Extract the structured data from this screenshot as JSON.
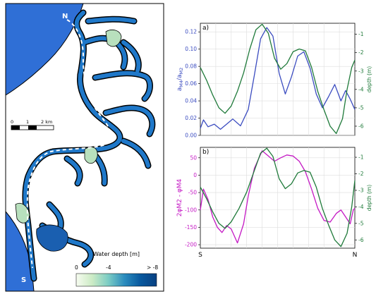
{
  "map": {
    "north_label": "N",
    "south_label": "S",
    "scalebar": {
      "ticks": [
        "0",
        "1",
        "2 km"
      ]
    },
    "colorbar": {
      "title": "Water depth [m]",
      "ticks": [
        "0",
        "-4",
        "> -8"
      ],
      "colors": [
        "#f7fcf0",
        "#ccebc5",
        "#7bccc4",
        "#2b8cbe",
        "#08589e",
        "#084081"
      ]
    },
    "colors": {
      "land": "#ffffff",
      "sea": "#2f6fd6",
      "channel": "#1d73c4",
      "shallow": "#b8e0bd",
      "outline": "#000000"
    }
  },
  "chart_data": [
    {
      "type": "line",
      "panel_label": "a)",
      "x_tick_labels": [
        "S",
        "N"
      ],
      "ylabel_left": "a_M4/a_M2",
      "ylabel_right": "depth (m)",
      "left_ylim": [
        0,
        0.13
      ],
      "left_yticks": [
        "0.00",
        "0.02",
        "0.04",
        "0.06",
        "0.08",
        "0.10",
        "0.12"
      ],
      "right_ylim": [
        -6.5,
        -0.4
      ],
      "right_yticks": [
        "-1",
        "-2",
        "-3",
        "-4",
        "-5",
        "-6"
      ],
      "grid": true,
      "series": [
        {
          "axis": "left",
          "color": "#3b4cc0",
          "x": [
            0,
            0.02,
            0.05,
            0.09,
            0.13,
            0.17,
            0.21,
            0.26,
            0.31,
            0.35,
            0.39,
            0.43,
            0.47,
            0.51,
            0.55,
            0.59,
            0.63,
            0.67,
            0.71,
            0.75,
            0.79,
            0.83,
            0.87,
            0.91,
            0.94,
            0.97,
            1.0
          ],
          "y": [
            0.008,
            0.018,
            0.01,
            0.013,
            0.007,
            0.013,
            0.019,
            0.011,
            0.03,
            0.07,
            0.112,
            0.125,
            0.115,
            0.072,
            0.048,
            0.068,
            0.092,
            0.097,
            0.078,
            0.048,
            0.032,
            0.045,
            0.059,
            0.04,
            0.052,
            0.042,
            0.03
          ]
        },
        {
          "axis": "right",
          "color": "#1f7a3a",
          "x": [
            0,
            0.04,
            0.08,
            0.12,
            0.16,
            0.2,
            0.24,
            0.28,
            0.32,
            0.36,
            0.4,
            0.44,
            0.48,
            0.52,
            0.56,
            0.6,
            0.64,
            0.68,
            0.72,
            0.76,
            0.8,
            0.84,
            0.88,
            0.92,
            0.95,
            0.98,
            1.0
          ],
          "y": [
            -2.8,
            -3.5,
            -4.3,
            -5.0,
            -5.3,
            -4.9,
            -4.1,
            -3.1,
            -1.8,
            -0.75,
            -0.45,
            -0.95,
            -2.3,
            -2.9,
            -2.6,
            -1.95,
            -1.8,
            -1.9,
            -2.8,
            -4.1,
            -5.1,
            -6.0,
            -6.4,
            -5.6,
            -4.0,
            -2.8,
            -2.4
          ]
        }
      ]
    },
    {
      "type": "line",
      "panel_label": "b)",
      "x_tick_labels": [
        "S",
        "N"
      ],
      "ylabel_left": "2φ_M2 - φ_M4",
      "ylabel_right": "depth (m)",
      "left_ylim": [
        -210,
        80
      ],
      "left_yticks": [
        "50",
        "0",
        "-50",
        "-100",
        "-150",
        "-200"
      ],
      "right_ylim": [
        -6.5,
        -0.4
      ],
      "right_yticks": [
        "-1",
        "-2",
        "-3",
        "-4",
        "-5",
        "-6"
      ],
      "grid": true,
      "series": [
        {
          "axis": "left",
          "color": "#c418c4",
          "x": [
            0,
            0.02,
            0.05,
            0.08,
            0.11,
            0.14,
            0.17,
            0.2,
            0.24,
            0.28,
            0.31,
            0.35,
            0.4,
            0.44,
            0.48,
            0.52,
            0.56,
            0.6,
            0.64,
            0.68,
            0.72,
            0.76,
            0.8,
            0.84,
            0.88,
            0.91,
            0.94,
            0.97,
            0.99,
            1.0
          ],
          "y": [
            -100,
            -40,
            -70,
            -120,
            -150,
            -165,
            -145,
            -155,
            -195,
            -140,
            -60,
            20,
            70,
            55,
            40,
            50,
            58,
            55,
            40,
            10,
            -40,
            -95,
            -130,
            -135,
            -110,
            -100,
            -120,
            -140,
            -100,
            -95
          ]
        },
        {
          "axis": "right",
          "color": "#1f7a3a",
          "x": [
            0,
            0.04,
            0.08,
            0.12,
            0.16,
            0.2,
            0.25,
            0.3,
            0.35,
            0.39,
            0.43,
            0.47,
            0.51,
            0.55,
            0.59,
            0.63,
            0.67,
            0.71,
            0.75,
            0.79,
            0.83,
            0.87,
            0.91,
            0.95,
            0.98,
            1.0
          ],
          "y": [
            -2.8,
            -3.5,
            -4.3,
            -5.0,
            -5.3,
            -4.9,
            -4.1,
            -3.1,
            -1.8,
            -0.75,
            -0.45,
            -0.95,
            -2.3,
            -2.9,
            -2.6,
            -1.95,
            -1.8,
            -1.9,
            -2.8,
            -4.1,
            -5.1,
            -6.0,
            -6.4,
            -5.6,
            -4.0,
            -2.4
          ]
        }
      ]
    }
  ]
}
